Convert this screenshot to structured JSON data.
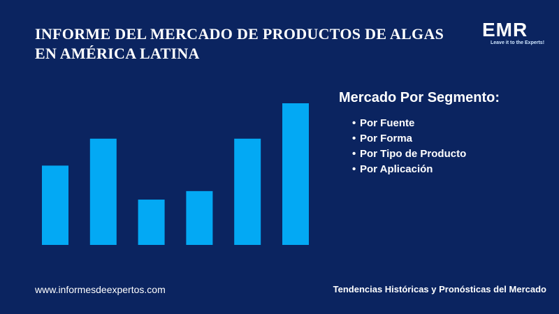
{
  "header": {
    "title_lines": [
      "INFORME DEL MERCADO DE PRODUCTOS DE ALGAS",
      "EN AMÉRICA LATINA"
    ]
  },
  "logo": {
    "name": "EMR",
    "tagline": "Leave it to the Experts!"
  },
  "segments": {
    "heading": "Mercado Por Segmento:",
    "items": [
      "Por Fuente",
      "Por Forma",
      "Por Tipo de Producto",
      "Por Aplicación"
    ]
  },
  "footer": {
    "website": "www.informesdeexpertos.com",
    "tagline": "Tendencias Históricas y Pronósticas del Mercado"
  },
  "chart_data": {
    "type": "bar",
    "values": [
      56,
      75,
      32,
      38,
      75,
      100
    ],
    "color": "#03a9f4"
  }
}
